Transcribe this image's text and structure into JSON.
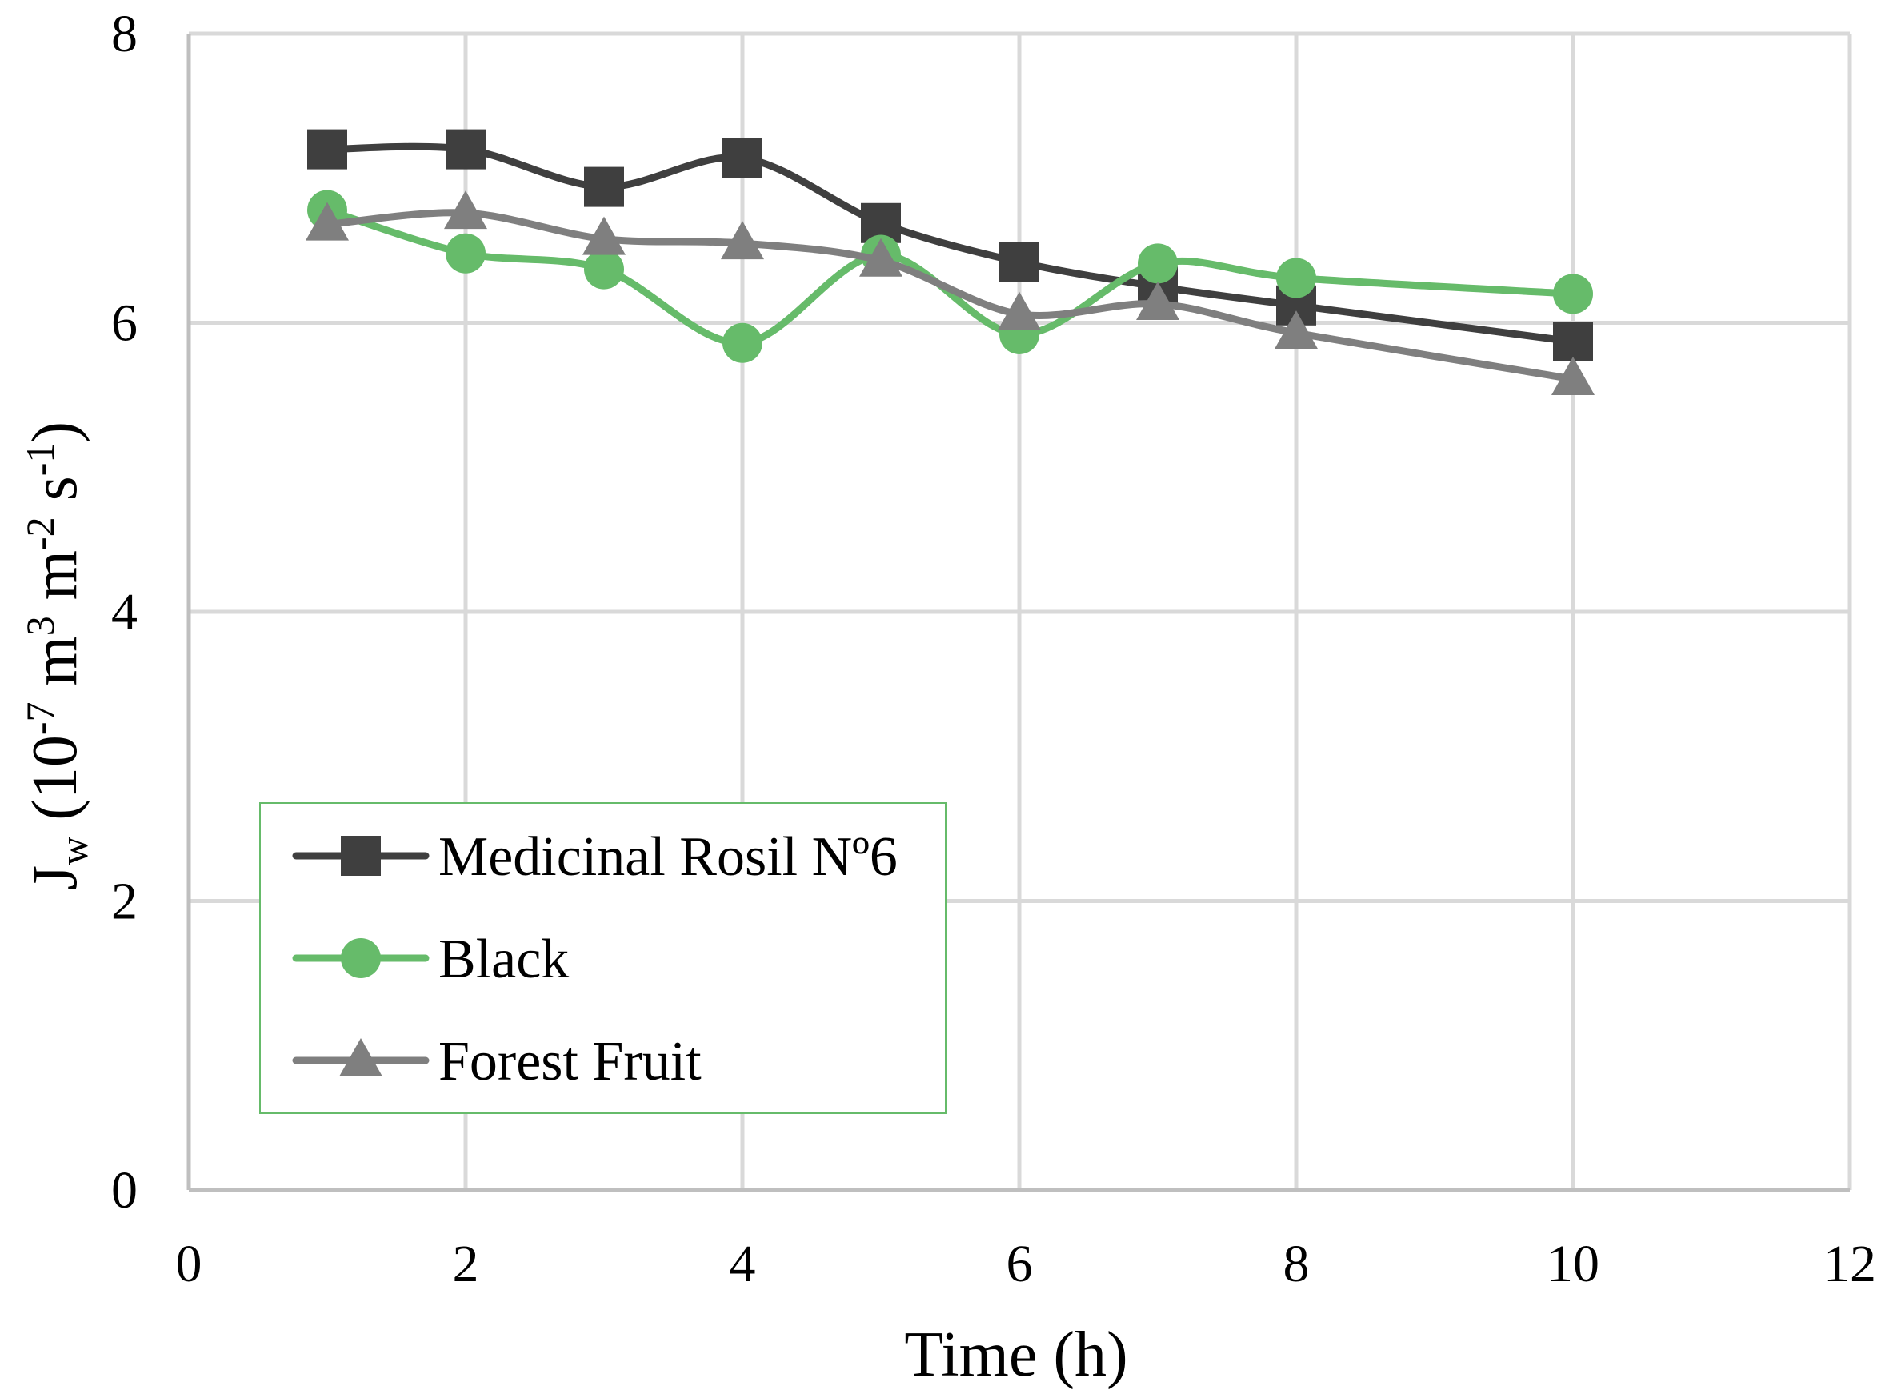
{
  "chart_data": {
    "type": "line",
    "x": [
      1,
      2,
      3,
      4,
      5,
      6,
      7,
      8,
      10
    ],
    "series": [
      {
        "name": "Medicinal Rosil Nº6",
        "values": [
          7.2,
          7.2,
          6.94,
          7.14,
          6.69,
          6.42,
          6.25,
          6.12,
          5.87
        ],
        "color": "#3f3f3f",
        "marker": "square"
      },
      {
        "name": "Black",
        "values": [
          6.78,
          6.48,
          6.37,
          5.86,
          6.47,
          5.92,
          6.41,
          6.31,
          6.2
        ],
        "color": "#66bb6a",
        "marker": "circle"
      },
      {
        "name": "Forest Fruit",
        "values": [
          6.68,
          6.76,
          6.58,
          6.55,
          6.43,
          6.06,
          6.13,
          5.93,
          5.61
        ],
        "color": "#7f7f7f",
        "marker": "triangle"
      }
    ],
    "xlim": [
      0,
      12
    ],
    "ylim": [
      0,
      8
    ],
    "xticks": [
      "0",
      "2",
      "4",
      "6",
      "8",
      "10",
      "12"
    ],
    "yticks": [
      "0",
      "2",
      "4",
      "6",
      "8"
    ],
    "xlabel": "Time (h)",
    "ylabel": {
      "main": "J",
      "sub": "w",
      "open": " (10",
      "exp1": "-7",
      "m1": " m",
      "exp2": "3",
      "m2": " m",
      "exp3": "-2",
      "s": " s",
      "exp4": "-1",
      "close": ")"
    },
    "grid": true,
    "legend_position": "lower-left",
    "legend_border_color": "#66bb6a"
  }
}
